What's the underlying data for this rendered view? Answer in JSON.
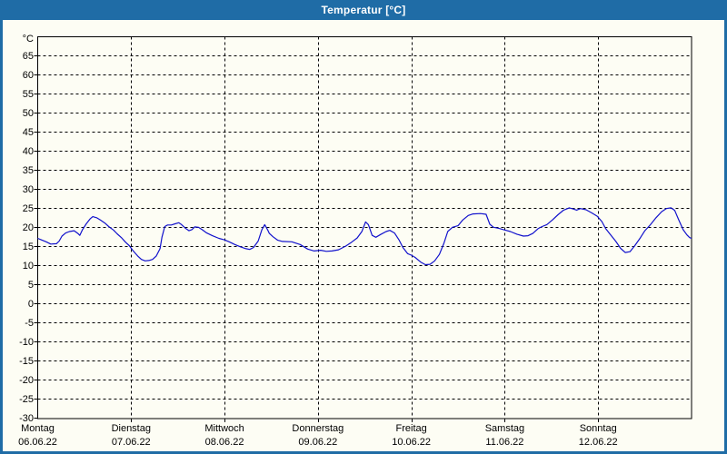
{
  "window": {
    "title": "Temperatur [°C]"
  },
  "colors": {
    "accent": "#1F6CA6",
    "background": "#FDFDF4",
    "grid": "#000000",
    "line": "#1010CC",
    "title_text": "#FFFFFF",
    "label_text": "#000000"
  },
  "chart_data": {
    "type": "line",
    "title": "Temperatur [°C]",
    "unit_label": "°C",
    "grid": "dashed",
    "legend": "none",
    "y_axis": {
      "min": -30,
      "max": 70,
      "tick_step": 5,
      "tick_labels": [
        65,
        60,
        55,
        50,
        45,
        40,
        35,
        30,
        25,
        20,
        15,
        10,
        5,
        0,
        -5,
        -10,
        -15,
        -20,
        -25,
        -30
      ]
    },
    "x_axis": {
      "unit": "days",
      "range_days": [
        0,
        7
      ],
      "days": [
        {
          "name": "Montag",
          "date": "06.06.22"
        },
        {
          "name": "Dienstag",
          "date": "07.06.22"
        },
        {
          "name": "Mittwoch",
          "date": "08.06.22"
        },
        {
          "name": "Donnerstag",
          "date": "09.06.22"
        },
        {
          "name": "Freitag",
          "date": "10.06.22"
        },
        {
          "name": "Samstag",
          "date": "11.06.22"
        },
        {
          "name": "Sonntag",
          "date": "12.06.22"
        }
      ]
    },
    "series": [
      {
        "name": "Temperatur",
        "color": "#1010CC",
        "points": [
          [
            0.0,
            17.2
          ],
          [
            0.04,
            16.8
          ],
          [
            0.09,
            16.3
          ],
          [
            0.14,
            15.7
          ],
          [
            0.2,
            15.8
          ],
          [
            0.23,
            16.5
          ],
          [
            0.26,
            17.8
          ],
          [
            0.3,
            18.6
          ],
          [
            0.34,
            19.0
          ],
          [
            0.39,
            19.2
          ],
          [
            0.43,
            18.5
          ],
          [
            0.45,
            18.0
          ],
          [
            0.48,
            19.5
          ],
          [
            0.52,
            21.0
          ],
          [
            0.56,
            22.3
          ],
          [
            0.59,
            22.9
          ],
          [
            0.63,
            22.6
          ],
          [
            0.67,
            22.0
          ],
          [
            0.72,
            21.2
          ],
          [
            0.76,
            20.3
          ],
          [
            0.81,
            19.4
          ],
          [
            0.85,
            18.4
          ],
          [
            0.9,
            17.3
          ],
          [
            0.94,
            16.2
          ],
          [
            0.98,
            15.3
          ],
          [
            1.02,
            14.0
          ],
          [
            1.07,
            12.6
          ],
          [
            1.11,
            11.7
          ],
          [
            1.15,
            11.3
          ],
          [
            1.19,
            11.4
          ],
          [
            1.23,
            11.7
          ],
          [
            1.27,
            12.6
          ],
          [
            1.31,
            14.5
          ],
          [
            1.33,
            17.5
          ],
          [
            1.36,
            20.3
          ],
          [
            1.39,
            20.7
          ],
          [
            1.43,
            20.7
          ],
          [
            1.47,
            21.0
          ],
          [
            1.51,
            21.3
          ],
          [
            1.54,
            20.8
          ],
          [
            1.58,
            19.9
          ],
          [
            1.62,
            19.2
          ],
          [
            1.65,
            19.5
          ],
          [
            1.68,
            20.2
          ],
          [
            1.72,
            20.1
          ],
          [
            1.76,
            19.5
          ],
          [
            1.81,
            18.6
          ],
          [
            1.87,
            17.9
          ],
          [
            1.94,
            17.2
          ],
          [
            2.0,
            16.8
          ],
          [
            2.05,
            16.3
          ],
          [
            2.11,
            15.6
          ],
          [
            2.17,
            15.0
          ],
          [
            2.23,
            14.5
          ],
          [
            2.27,
            14.3
          ],
          [
            2.31,
            14.8
          ],
          [
            2.36,
            16.5
          ],
          [
            2.4,
            19.5
          ],
          [
            2.43,
            20.8
          ],
          [
            2.46,
            19.5
          ],
          [
            2.48,
            18.5
          ],
          [
            2.52,
            17.6
          ],
          [
            2.57,
            16.7
          ],
          [
            2.62,
            16.4
          ],
          [
            2.72,
            16.3
          ],
          [
            2.81,
            15.6
          ],
          [
            2.89,
            14.4
          ],
          [
            2.96,
            13.9
          ],
          [
            3.03,
            14.1
          ],
          [
            3.09,
            13.8
          ],
          [
            3.15,
            13.9
          ],
          [
            3.22,
            14.2
          ],
          [
            3.3,
            15.2
          ],
          [
            3.36,
            16.2
          ],
          [
            3.42,
            17.3
          ],
          [
            3.47,
            19.0
          ],
          [
            3.51,
            21.5
          ],
          [
            3.54,
            20.8
          ],
          [
            3.58,
            18.0
          ],
          [
            3.62,
            17.5
          ],
          [
            3.67,
            18.2
          ],
          [
            3.73,
            19.0
          ],
          [
            3.77,
            19.3
          ],
          [
            3.82,
            18.6
          ],
          [
            3.87,
            16.7
          ],
          [
            3.91,
            14.8
          ],
          [
            3.96,
            13.2
          ],
          [
            4.0,
            12.8
          ],
          [
            4.04,
            12.2
          ],
          [
            4.1,
            11.0
          ],
          [
            4.15,
            10.3
          ],
          [
            4.2,
            10.4
          ],
          [
            4.25,
            11.3
          ],
          [
            4.3,
            13.0
          ],
          [
            4.35,
            16.0
          ],
          [
            4.39,
            19.0
          ],
          [
            4.44,
            20.1
          ],
          [
            4.5,
            20.5
          ],
          [
            4.55,
            22.0
          ],
          [
            4.61,
            23.2
          ],
          [
            4.66,
            23.6
          ],
          [
            4.74,
            23.7
          ],
          [
            4.8,
            23.5
          ],
          [
            4.84,
            20.9
          ],
          [
            4.88,
            20.1
          ],
          [
            4.94,
            19.8
          ],
          [
            5.0,
            19.4
          ],
          [
            5.06,
            19.0
          ],
          [
            5.13,
            18.3
          ],
          [
            5.2,
            17.8
          ],
          [
            5.25,
            17.9
          ],
          [
            5.3,
            18.5
          ],
          [
            5.36,
            19.8
          ],
          [
            5.4,
            20.3
          ],
          [
            5.45,
            20.8
          ],
          [
            5.51,
            22.0
          ],
          [
            5.57,
            23.4
          ],
          [
            5.63,
            24.6
          ],
          [
            5.69,
            25.2
          ],
          [
            5.73,
            24.9
          ],
          [
            5.77,
            24.6
          ],
          [
            5.81,
            25.0
          ],
          [
            5.87,
            24.7
          ],
          [
            5.93,
            23.9
          ],
          [
            5.99,
            23.0
          ],
          [
            6.04,
            21.6
          ],
          [
            6.08,
            19.8
          ],
          [
            6.13,
            18.2
          ],
          [
            6.19,
            16.4
          ],
          [
            6.24,
            14.6
          ],
          [
            6.29,
            13.5
          ],
          [
            6.34,
            13.7
          ],
          [
            6.39,
            15.2
          ],
          [
            6.45,
            17.3
          ],
          [
            6.5,
            19.2
          ],
          [
            6.56,
            20.8
          ],
          [
            6.62,
            22.6
          ],
          [
            6.68,
            24.2
          ],
          [
            6.73,
            25.0
          ],
          [
            6.78,
            25.2
          ],
          [
            6.82,
            24.5
          ],
          [
            6.86,
            22.2
          ],
          [
            6.91,
            19.5
          ],
          [
            6.95,
            18.1
          ],
          [
            6.98,
            17.4
          ],
          [
            7.0,
            17.2
          ]
        ]
      }
    ]
  }
}
